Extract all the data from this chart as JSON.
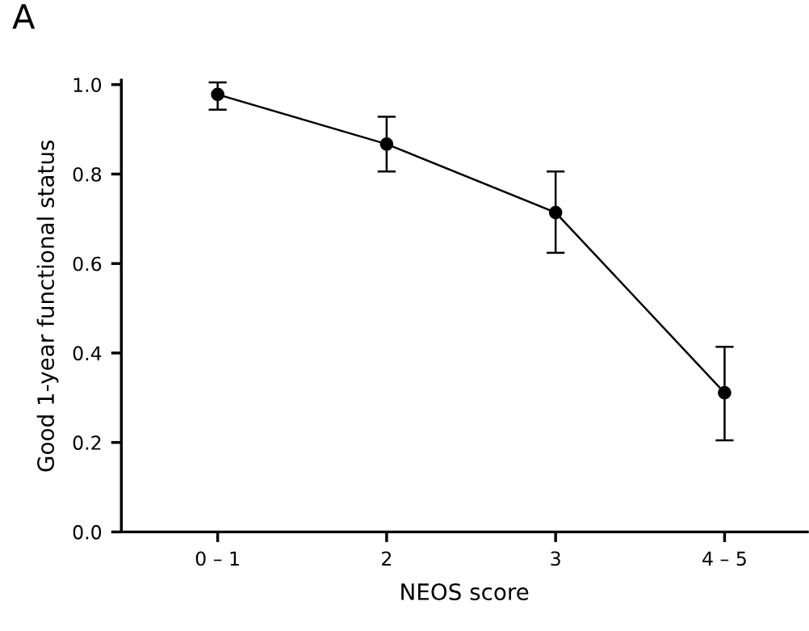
{
  "chart_data": {
    "type": "line",
    "xlabel": "NEOS score",
    "ylabel": "Good 1-year functional status",
    "annotations": [
      "A"
    ],
    "categories": [
      "0 – 1",
      "2",
      "3",
      "4 – 5"
    ],
    "series": [
      {
        "color": "#000000",
        "values": [
          0.978,
          0.867,
          0.714,
          0.311
        ],
        "errors": [
          [
            0.944,
            1.005
          ],
          [
            0.806,
            0.928
          ],
          [
            0.624,
            0.806
          ],
          [
            0.205,
            0.414
          ]
        ]
      }
    ],
    "marker": "circle",
    "line_style": "solid",
    "grid": false,
    "legend": false,
    "ylim": [
      0,
      1.01
    ],
    "yticks": [
      {
        "value": 0,
        "label": "0.0"
      },
      0.2,
      0.4,
      0.6,
      0.8,
      {
        "value": 1,
        "label": "1.0"
      }
    ]
  }
}
